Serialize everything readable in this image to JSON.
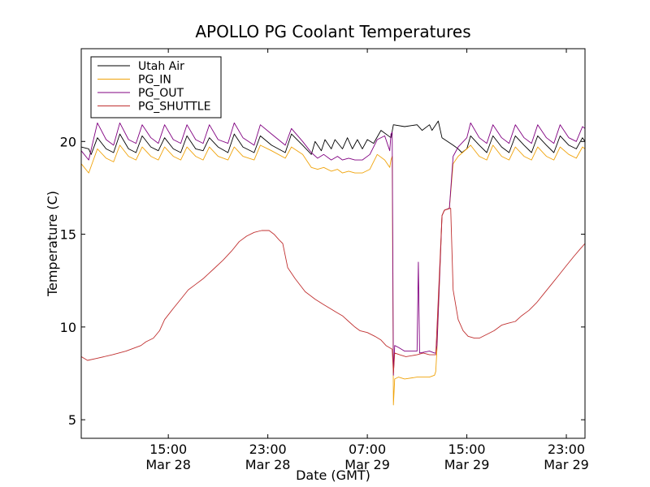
{
  "chart_data": {
    "type": "line",
    "title": "APOLLO PG Coolant Temperatures",
    "xlabel": "Date (GMT)",
    "ylabel": "Temperature (C)",
    "x_unit": "hours since Mar 28 08:00 GMT",
    "xlim": [
      0,
      40.5
    ],
    "ylim": [
      4,
      25
    ],
    "yticks": [
      5,
      10,
      15,
      20
    ],
    "xticks": [
      {
        "x": 7,
        "line1": "15:00",
        "line2": "Mar 28"
      },
      {
        "x": 15,
        "line1": "23:00",
        "line2": "Mar 28"
      },
      {
        "x": 23,
        "line1": "07:00",
        "line2": "Mar 29"
      },
      {
        "x": 31,
        "line1": "15:00",
        "line2": "Mar 29"
      },
      {
        "x": 39,
        "line1": "23:00",
        "line2": "Mar 29"
      }
    ],
    "legend_location": "upper-left",
    "series": [
      {
        "name": "Utah Air",
        "color": "#000000",
        "points": [
          [
            0,
            19.7
          ],
          [
            0.6,
            19.6
          ],
          [
            0.8,
            19.3
          ],
          [
            1.3,
            20.2
          ],
          [
            2.0,
            19.6
          ],
          [
            2.6,
            19.4
          ],
          [
            3.1,
            20.4
          ],
          [
            3.8,
            19.6
          ],
          [
            4.4,
            19.4
          ],
          [
            4.9,
            20.3
          ],
          [
            5.6,
            19.7
          ],
          [
            6.2,
            19.5
          ],
          [
            6.7,
            20.2
          ],
          [
            7.4,
            19.6
          ],
          [
            8.0,
            19.4
          ],
          [
            8.5,
            20.3
          ],
          [
            9.2,
            19.6
          ],
          [
            9.8,
            19.5
          ],
          [
            10.3,
            20.2
          ],
          [
            11.0,
            19.7
          ],
          [
            11.8,
            19.4
          ],
          [
            12.3,
            20.4
          ],
          [
            13.0,
            19.7
          ],
          [
            13.9,
            19.4
          ],
          [
            14.4,
            20.3
          ],
          [
            15.3,
            19.8
          ],
          [
            16.4,
            19.4
          ],
          [
            16.9,
            20.4
          ],
          [
            17.8,
            19.8
          ],
          [
            18.5,
            19.3
          ],
          [
            18.8,
            20.0
          ],
          [
            19.3,
            19.5
          ],
          [
            19.6,
            20.1
          ],
          [
            20.1,
            19.6
          ],
          [
            20.4,
            20.1
          ],
          [
            21.0,
            19.6
          ],
          [
            21.4,
            20.2
          ],
          [
            21.8,
            19.6
          ],
          [
            22.2,
            20.1
          ],
          [
            22.6,
            19.6
          ],
          [
            23.0,
            20.1
          ],
          [
            23.5,
            19.9
          ],
          [
            24.1,
            20.6
          ],
          [
            24.9,
            20.2
          ],
          [
            25.1,
            20.9
          ],
          [
            26.0,
            20.8
          ],
          [
            27.0,
            20.9
          ],
          [
            27.4,
            20.6
          ],
          [
            28.0,
            20.9
          ],
          [
            28.2,
            20.6
          ],
          [
            28.7,
            21.1
          ],
          [
            29.0,
            20.2
          ],
          [
            29.9,
            19.8
          ],
          [
            30.3,
            19.6
          ],
          [
            30.6,
            19.4
          ],
          [
            31.0,
            19.6
          ],
          [
            31.3,
            20.3
          ],
          [
            32.0,
            19.8
          ],
          [
            32.6,
            19.4
          ],
          [
            33.1,
            20.3
          ],
          [
            33.8,
            19.7
          ],
          [
            34.4,
            19.4
          ],
          [
            34.9,
            20.3
          ],
          [
            35.6,
            19.8
          ],
          [
            36.2,
            19.4
          ],
          [
            36.7,
            20.3
          ],
          [
            37.4,
            19.8
          ],
          [
            38.0,
            19.4
          ],
          [
            38.5,
            20.3
          ],
          [
            39.2,
            19.8
          ],
          [
            39.8,
            19.6
          ],
          [
            40.3,
            20.2
          ],
          [
            40.5,
            20.0
          ]
        ]
      },
      {
        "name": "PG_IN",
        "color": "#f0a30a",
        "points": [
          [
            0,
            18.8
          ],
          [
            0.6,
            18.3
          ],
          [
            1.3,
            19.6
          ],
          [
            2.0,
            19.1
          ],
          [
            2.6,
            18.9
          ],
          [
            3.1,
            19.8
          ],
          [
            3.8,
            19.2
          ],
          [
            4.4,
            19.0
          ],
          [
            4.9,
            19.7
          ],
          [
            5.6,
            19.2
          ],
          [
            6.2,
            19.0
          ],
          [
            6.7,
            19.7
          ],
          [
            7.4,
            19.2
          ],
          [
            8.0,
            19.0
          ],
          [
            8.5,
            19.7
          ],
          [
            9.2,
            19.2
          ],
          [
            9.8,
            19.0
          ],
          [
            10.3,
            19.7
          ],
          [
            11.0,
            19.2
          ],
          [
            11.8,
            19.0
          ],
          [
            12.3,
            19.7
          ],
          [
            13.0,
            19.2
          ],
          [
            13.9,
            19.0
          ],
          [
            14.4,
            19.8
          ],
          [
            15.3,
            19.5
          ],
          [
            16.4,
            19.1
          ],
          [
            16.9,
            19.7
          ],
          [
            17.8,
            19.3
          ],
          [
            18.5,
            18.6
          ],
          [
            19.0,
            18.5
          ],
          [
            19.5,
            18.6
          ],
          [
            20.1,
            18.4
          ],
          [
            20.6,
            18.5
          ],
          [
            21.0,
            18.3
          ],
          [
            21.5,
            18.4
          ],
          [
            22.0,
            18.3
          ],
          [
            22.6,
            18.3
          ],
          [
            23.2,
            18.5
          ],
          [
            23.8,
            19.3
          ],
          [
            24.4,
            19.0
          ],
          [
            24.8,
            18.6
          ],
          [
            24.9,
            19.0
          ],
          [
            25.0,
            19.2
          ],
          [
            25.1,
            5.8
          ],
          [
            25.2,
            7.2
          ],
          [
            25.5,
            7.3
          ],
          [
            26.0,
            7.2
          ],
          [
            27.0,
            7.3
          ],
          [
            28.0,
            7.3
          ],
          [
            28.4,
            7.4
          ],
          [
            28.5,
            7.6
          ],
          [
            28.6,
            8.8
          ],
          [
            29.0,
            16.0
          ],
          [
            29.2,
            16.3
          ],
          [
            29.6,
            16.4
          ],
          [
            29.9,
            18.8
          ],
          [
            30.3,
            19.2
          ],
          [
            31.0,
            19.6
          ],
          [
            31.3,
            19.8
          ],
          [
            32.0,
            19.2
          ],
          [
            32.6,
            19.0
          ],
          [
            33.1,
            19.8
          ],
          [
            33.8,
            19.2
          ],
          [
            34.4,
            19.0
          ],
          [
            34.9,
            19.7
          ],
          [
            35.6,
            19.2
          ],
          [
            36.2,
            19.0
          ],
          [
            36.7,
            19.7
          ],
          [
            37.4,
            19.2
          ],
          [
            38.0,
            19.0
          ],
          [
            38.5,
            19.7
          ],
          [
            39.2,
            19.3
          ],
          [
            39.8,
            19.1
          ],
          [
            40.3,
            19.7
          ],
          [
            40.5,
            19.6
          ]
        ]
      },
      {
        "name": "PG_OUT",
        "color": "#800080",
        "points": [
          [
            0,
            19.5
          ],
          [
            0.6,
            19.0
          ],
          [
            1.3,
            21.0
          ],
          [
            2.0,
            20.1
          ],
          [
            2.6,
            19.8
          ],
          [
            3.1,
            21.0
          ],
          [
            3.8,
            20.1
          ],
          [
            4.4,
            19.9
          ],
          [
            4.9,
            20.9
          ],
          [
            5.6,
            20.2
          ],
          [
            6.2,
            19.9
          ],
          [
            6.7,
            20.9
          ],
          [
            7.4,
            20.1
          ],
          [
            8.0,
            19.9
          ],
          [
            8.5,
            20.9
          ],
          [
            9.2,
            20.1
          ],
          [
            9.8,
            19.9
          ],
          [
            10.3,
            20.9
          ],
          [
            11.0,
            20.1
          ],
          [
            11.8,
            19.9
          ],
          [
            12.3,
            21.0
          ],
          [
            13.0,
            20.2
          ],
          [
            13.9,
            19.8
          ],
          [
            14.4,
            20.9
          ],
          [
            15.3,
            20.4
          ],
          [
            16.4,
            19.8
          ],
          [
            16.9,
            20.7
          ],
          [
            17.8,
            20.0
          ],
          [
            18.5,
            19.4
          ],
          [
            19.0,
            19.1
          ],
          [
            19.5,
            19.3
          ],
          [
            20.1,
            19.0
          ],
          [
            20.6,
            19.2
          ],
          [
            21.0,
            19.0
          ],
          [
            21.5,
            19.1
          ],
          [
            22.0,
            19.0
          ],
          [
            22.6,
            19.0
          ],
          [
            23.2,
            19.3
          ],
          [
            23.8,
            20.1
          ],
          [
            24.4,
            20.3
          ],
          [
            24.8,
            19.5
          ],
          [
            24.9,
            20.4
          ],
          [
            25.0,
            20.5
          ],
          [
            25.1,
            7.4
          ],
          [
            25.2,
            9.0
          ],
          [
            25.5,
            8.9
          ],
          [
            26.0,
            8.7
          ],
          [
            27.0,
            8.7
          ],
          [
            27.1,
            13.5
          ],
          [
            27.2,
            8.6
          ],
          [
            28.0,
            8.7
          ],
          [
            28.4,
            8.6
          ],
          [
            28.5,
            8.6
          ],
          [
            28.6,
            9.0
          ],
          [
            29.0,
            16.0
          ],
          [
            29.2,
            16.3
          ],
          [
            29.6,
            16.4
          ],
          [
            29.9,
            19.2
          ],
          [
            30.3,
            19.7
          ],
          [
            31.0,
            20.2
          ],
          [
            31.3,
            21.0
          ],
          [
            32.0,
            20.2
          ],
          [
            32.6,
            19.9
          ],
          [
            33.1,
            20.9
          ],
          [
            33.8,
            20.2
          ],
          [
            34.4,
            19.9
          ],
          [
            34.9,
            20.9
          ],
          [
            35.6,
            20.2
          ],
          [
            36.2,
            19.9
          ],
          [
            36.7,
            20.9
          ],
          [
            37.4,
            20.2
          ],
          [
            38.0,
            19.9
          ],
          [
            38.5,
            20.9
          ],
          [
            39.2,
            20.2
          ],
          [
            39.8,
            20.0
          ],
          [
            40.3,
            20.8
          ],
          [
            40.5,
            20.7
          ]
        ]
      },
      {
        "name": "PG_SHUTTLE",
        "color": "#c03030",
        "points": [
          [
            0,
            8.4
          ],
          [
            0.5,
            8.2
          ],
          [
            1.2,
            8.3
          ],
          [
            2.5,
            8.5
          ],
          [
            3.6,
            8.7
          ],
          [
            4.8,
            9.0
          ],
          [
            5.2,
            9.2
          ],
          [
            5.8,
            9.4
          ],
          [
            6.3,
            9.8
          ],
          [
            6.7,
            10.4
          ],
          [
            7.4,
            11.0
          ],
          [
            8.0,
            11.5
          ],
          [
            8.6,
            12.0
          ],
          [
            9.2,
            12.3
          ],
          [
            9.8,
            12.6
          ],
          [
            10.6,
            13.1
          ],
          [
            11.4,
            13.6
          ],
          [
            12.1,
            14.1
          ],
          [
            12.7,
            14.6
          ],
          [
            13.3,
            14.9
          ],
          [
            13.9,
            15.1
          ],
          [
            14.5,
            15.2
          ],
          [
            15.1,
            15.2
          ],
          [
            15.5,
            15.0
          ],
          [
            15.9,
            14.7
          ],
          [
            16.2,
            14.5
          ],
          [
            16.6,
            13.2
          ],
          [
            17.2,
            12.6
          ],
          [
            18.0,
            11.9
          ],
          [
            18.8,
            11.5
          ],
          [
            19.5,
            11.2
          ],
          [
            20.0,
            11.0
          ],
          [
            20.5,
            10.8
          ],
          [
            21.0,
            10.6
          ],
          [
            21.5,
            10.3
          ],
          [
            22.0,
            10.0
          ],
          [
            22.4,
            9.8
          ],
          [
            23.0,
            9.7
          ],
          [
            23.6,
            9.5
          ],
          [
            24.1,
            9.3
          ],
          [
            24.5,
            9.0
          ],
          [
            25.0,
            8.8
          ],
          [
            25.1,
            7.5
          ],
          [
            25.2,
            8.6
          ],
          [
            25.6,
            8.5
          ],
          [
            26.1,
            8.4
          ],
          [
            27.0,
            8.5
          ],
          [
            27.5,
            8.6
          ],
          [
            28.0,
            8.5
          ],
          [
            28.5,
            8.5
          ],
          [
            28.7,
            11.5
          ],
          [
            29.0,
            16.0
          ],
          [
            29.2,
            16.3
          ],
          [
            29.7,
            16.4
          ],
          [
            29.9,
            12.0
          ],
          [
            30.3,
            10.4
          ],
          [
            30.7,
            9.8
          ],
          [
            31.1,
            9.5
          ],
          [
            31.6,
            9.4
          ],
          [
            32.0,
            9.4
          ],
          [
            32.6,
            9.6
          ],
          [
            33.2,
            9.8
          ],
          [
            33.8,
            10.1
          ],
          [
            34.3,
            10.2
          ],
          [
            34.9,
            10.3
          ],
          [
            35.4,
            10.6
          ],
          [
            36.0,
            10.9
          ],
          [
            36.6,
            11.3
          ],
          [
            37.2,
            11.8
          ],
          [
            37.8,
            12.3
          ],
          [
            38.4,
            12.8
          ],
          [
            39.0,
            13.3
          ],
          [
            39.6,
            13.8
          ],
          [
            40.1,
            14.2
          ],
          [
            40.5,
            14.5
          ]
        ]
      }
    ]
  }
}
